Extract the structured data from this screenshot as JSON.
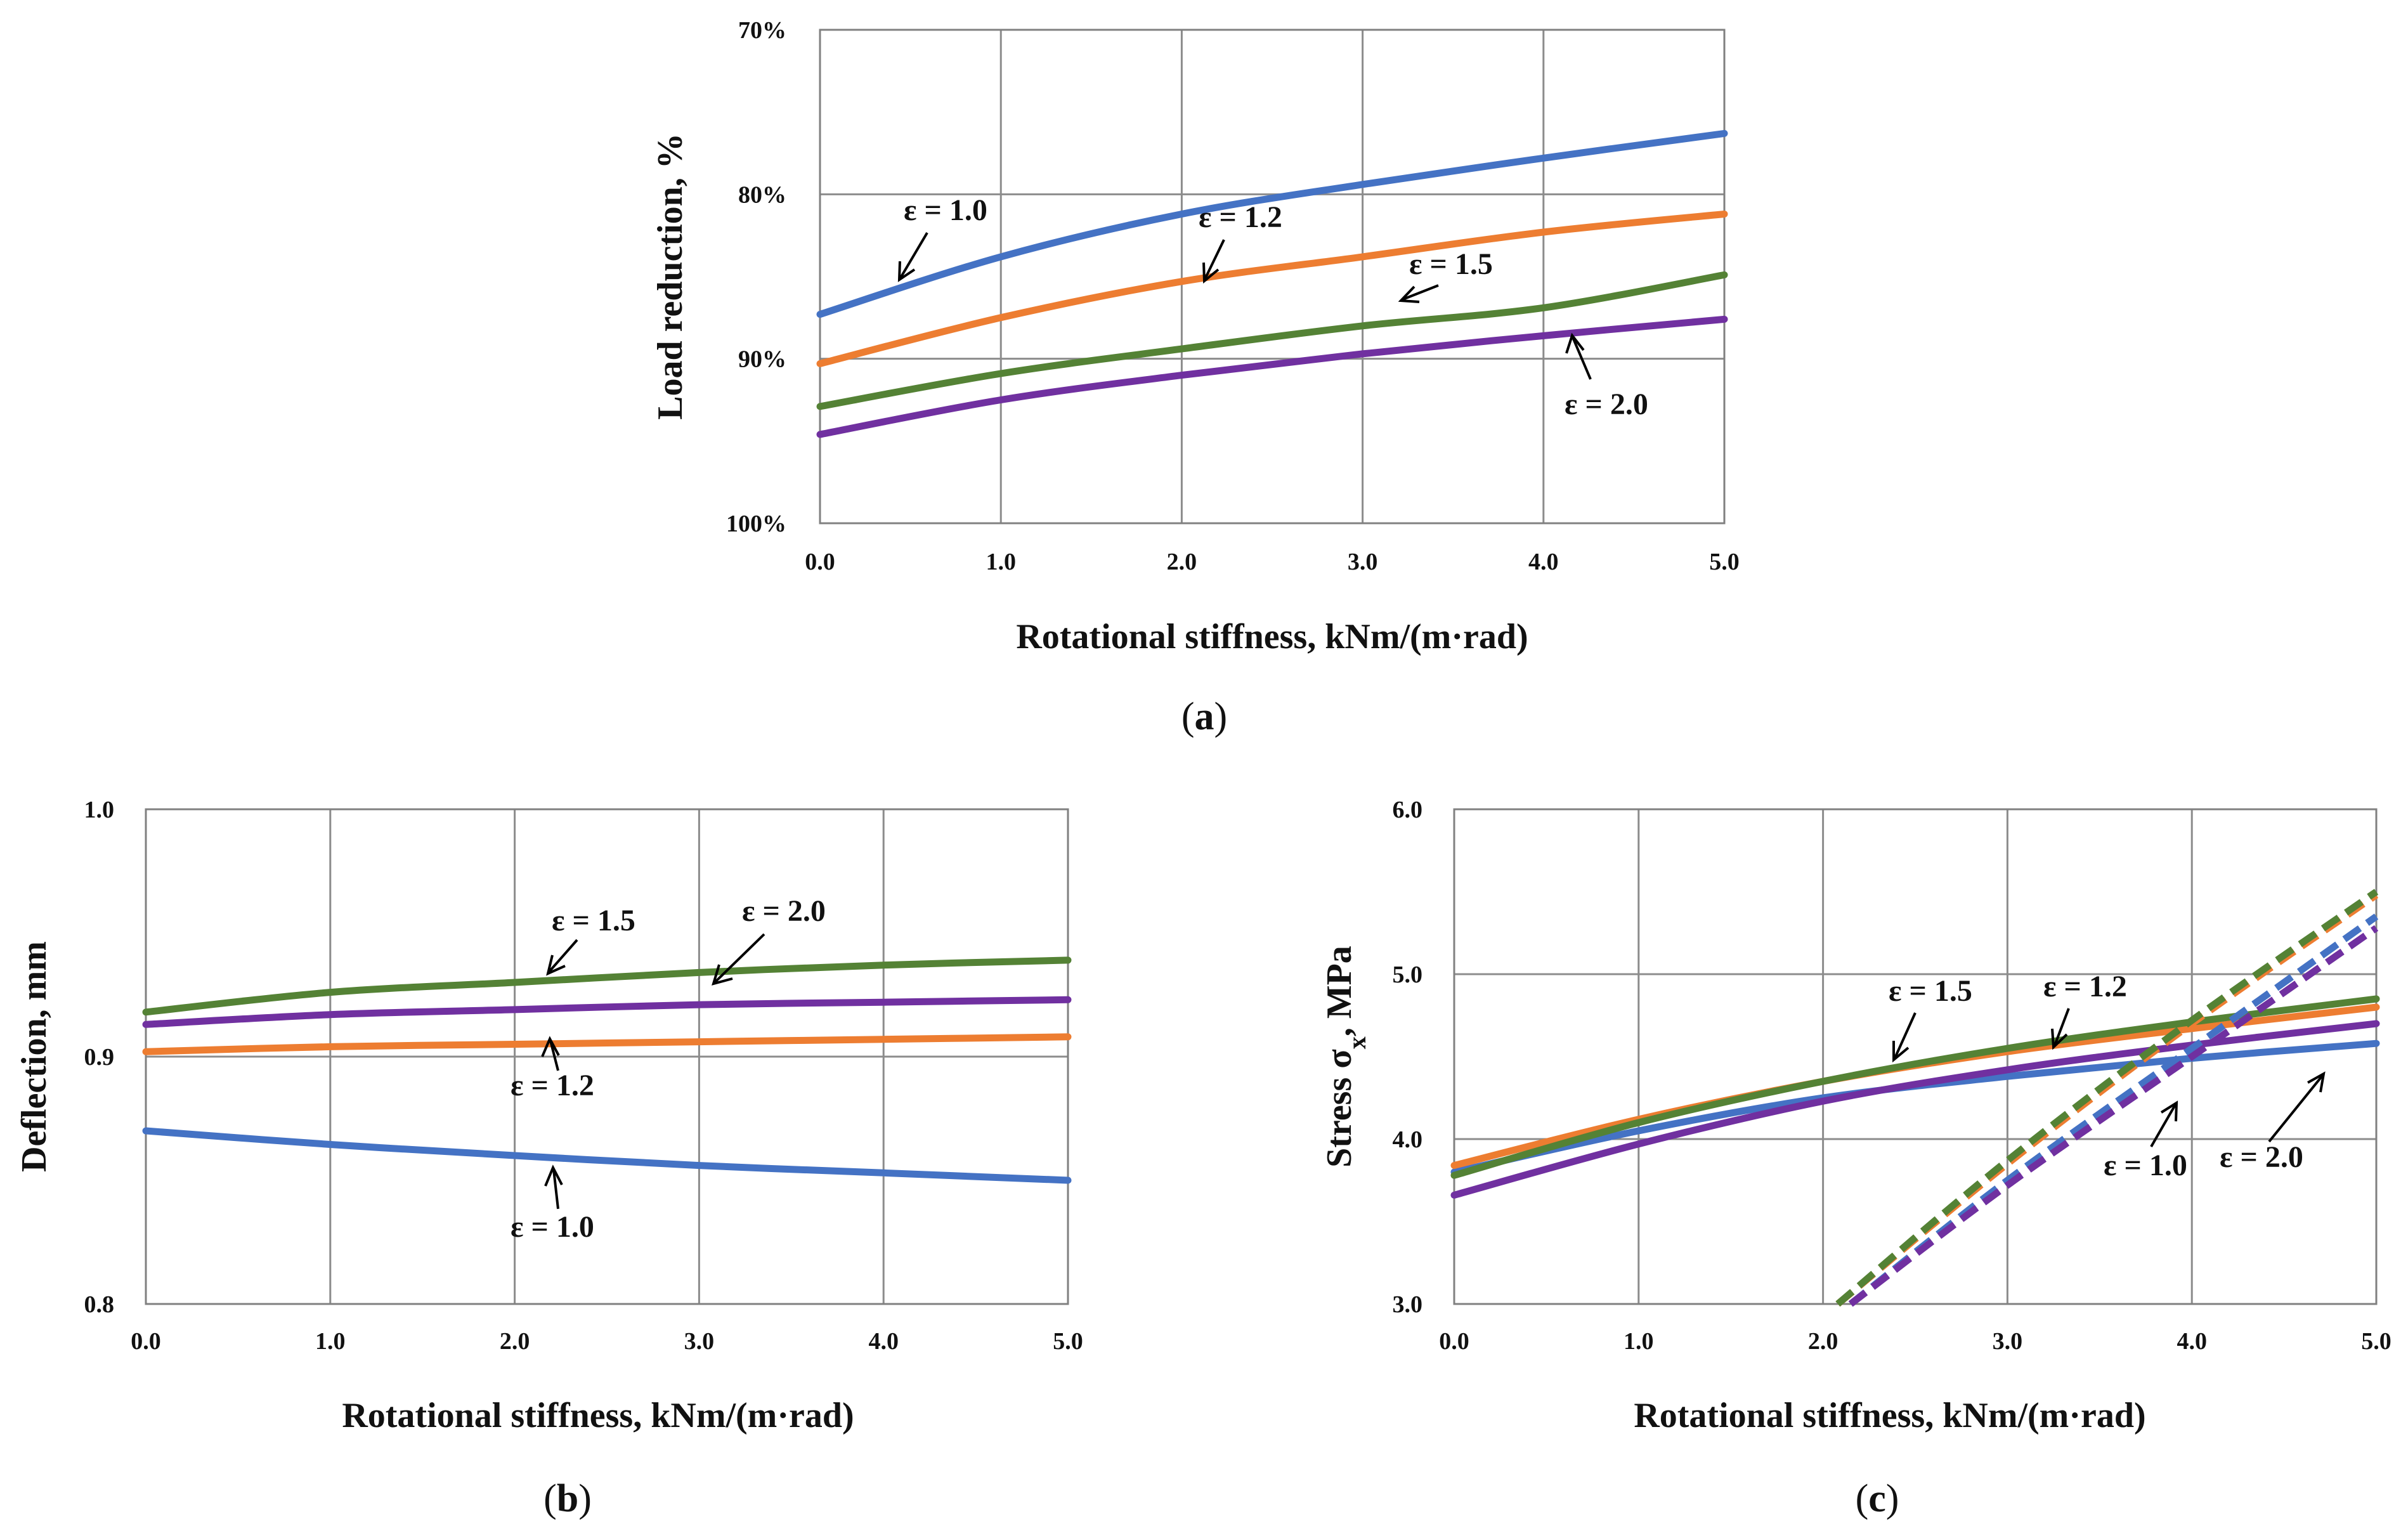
{
  "chart_data": [
    {
      "panel": "(a)",
      "type": "line",
      "xlabel": "Rotational stiffness, kNm/(m·rad)",
      "ylabel": "Load reduction, %",
      "xlim": [
        0,
        5
      ],
      "ylim": [
        100,
        70
      ],
      "y_inverted": true,
      "x_ticks": [
        "0.0",
        "1.0",
        "2.0",
        "3.0",
        "4.0",
        "5.0"
      ],
      "y_ticks": [
        "70%",
        "80%",
        "90%",
        "100%"
      ],
      "x": [
        0,
        1,
        2,
        3,
        4,
        5
      ],
      "series": [
        {
          "name": "ε = 1.0",
          "color": "#4472C4",
          "dash": false,
          "values": [
            87.3,
            83.8,
            81.2,
            79.4,
            77.8,
            76.3
          ]
        },
        {
          "name": "ε = 1.2",
          "color": "#ED7D31",
          "dash": false,
          "values": [
            90.3,
            87.5,
            85.3,
            83.8,
            82.3,
            81.2
          ]
        },
        {
          "name": "ε = 1.5",
          "color": "#548235",
          "dash": false,
          "values": [
            92.9,
            90.9,
            89.4,
            88.0,
            86.9,
            84.9
          ]
        },
        {
          "name": "ε = 2.0",
          "color": "#7030A0",
          "dash": false,
          "values": [
            94.6,
            92.5,
            91.0,
            89.7,
            88.6,
            87.6
          ]
        }
      ],
      "annotations": [
        {
          "text": "ε = 1.0",
          "series": "ε = 1.0"
        },
        {
          "text": "ε = 1.2",
          "series": "ε = 1.2"
        },
        {
          "text": "ε = 1.5",
          "series": "ε = 1.5"
        },
        {
          "text": "ε = 2.0",
          "series": "ε = 2.0"
        }
      ],
      "grid": true
    },
    {
      "panel": "(b)",
      "type": "line",
      "xlabel": "Rotational stiffness, kNm/(m·rad)",
      "ylabel": "Deflection, mm",
      "xlim": [
        0,
        5
      ],
      "ylim": [
        0.8,
        1.0
      ],
      "x_ticks": [
        "0.0",
        "1.0",
        "2.0",
        "3.0",
        "4.0",
        "5.0"
      ],
      "y_ticks": [
        "0.8",
        "0.9",
        "1.0"
      ],
      "x": [
        0,
        1,
        2,
        3,
        4,
        5
      ],
      "series": [
        {
          "name": "ε = 1.0",
          "color": "#4472C4",
          "dash": false,
          "values": [
            0.87,
            0.8645,
            0.86,
            0.856,
            0.853,
            0.85
          ]
        },
        {
          "name": "ε = 1.2",
          "color": "#ED7D31",
          "dash": false,
          "values": [
            0.902,
            0.904,
            0.905,
            0.906,
            0.907,
            0.908
          ]
        },
        {
          "name": "ε = 1.5",
          "color": "#548235",
          "dash": false,
          "values": [
            0.918,
            0.926,
            0.93,
            0.934,
            0.937,
            0.939
          ]
        },
        {
          "name": "ε = 2.0",
          "color": "#7030A0",
          "dash": false,
          "values": [
            0.913,
            0.917,
            0.919,
            0.921,
            0.922,
            0.923
          ]
        }
      ],
      "annotations": [
        {
          "text": "ε = 1.5",
          "series": "ε = 1.5"
        },
        {
          "text": "ε = 2.0",
          "series": "ε = 2.0"
        },
        {
          "text": "ε = 1.2",
          "series": "ε = 1.2"
        },
        {
          "text": "ε = 1.0",
          "series": "ε = 1.0"
        }
      ],
      "grid": true
    },
    {
      "panel": "(c)",
      "type": "line",
      "xlabel": "Rotational stiffness, kNm/(m·rad)",
      "ylabel": "Stress σx, MPa",
      "xlim": [
        0,
        5
      ],
      "ylim": [
        3.0,
        6.0
      ],
      "x_ticks": [
        "0.0",
        "1.0",
        "2.0",
        "3.0",
        "4.0",
        "5.0"
      ],
      "y_ticks": [
        "3.0",
        "4.0",
        "5.0",
        "6.0"
      ],
      "series": [
        {
          "name": "ε = 1.0",
          "color": "#4472C4",
          "dash": false,
          "x": [
            0,
            1,
            2,
            3,
            4,
            5
          ],
          "values": [
            3.8,
            4.05,
            4.25,
            4.38,
            4.49,
            4.58
          ]
        },
        {
          "name": "ε = 1.2",
          "color": "#ED7D31",
          "dash": false,
          "x": [
            0,
            1,
            2,
            3,
            4,
            5
          ],
          "values": [
            3.84,
            4.12,
            4.35,
            4.53,
            4.67,
            4.8
          ]
        },
        {
          "name": "ε = 1.5",
          "color": "#548235",
          "dash": false,
          "x": [
            0,
            1,
            2,
            3,
            4,
            5
          ],
          "values": [
            3.78,
            4.1,
            4.35,
            4.55,
            4.71,
            4.85
          ]
        },
        {
          "name": "ε = 2.0",
          "color": "#7030A0",
          "dash": false,
          "x": [
            0,
            1,
            2,
            3,
            4,
            5
          ],
          "values": [
            3.66,
            3.97,
            4.23,
            4.42,
            4.57,
            4.7
          ]
        },
        {
          "name": "ε = 1.0 (dashed)",
          "color": "#4472C4",
          "dash": true,
          "x": [
            2.15,
            3.0,
            4.0,
            5.0
          ],
          "values": [
            3.0,
            3.75,
            4.55,
            5.35
          ]
        },
        {
          "name": "ε = 1.2 (dashed)",
          "color": "#ED7D31",
          "dash": true,
          "x": [
            2.08,
            3.0,
            4.0,
            5.0
          ],
          "values": [
            3.0,
            3.85,
            4.7,
            5.48
          ]
        },
        {
          "name": "ε = 1.5 (dashed)",
          "color": "#548235",
          "dash": true,
          "x": [
            2.08,
            3.0,
            4.0,
            5.0
          ],
          "values": [
            3.0,
            3.87,
            4.72,
            5.5
          ]
        },
        {
          "name": "ε = 2.0 (dashed)",
          "color": "#7030A0",
          "dash": true,
          "x": [
            2.15,
            3.0,
            4.0,
            5.0
          ],
          "values": [
            3.0,
            3.72,
            4.5,
            5.28
          ]
        }
      ],
      "annotations": [
        {
          "text": "ε = 1.5",
          "series": "ε = 1.5"
        },
        {
          "text": "ε = 1.2",
          "series": "ε = 1.2"
        },
        {
          "text": "ε = 1.0",
          "series": "ε = 1.0"
        },
        {
          "text": "ε = 2.0",
          "series": "ε = 2.0"
        }
      ],
      "grid": true
    }
  ]
}
